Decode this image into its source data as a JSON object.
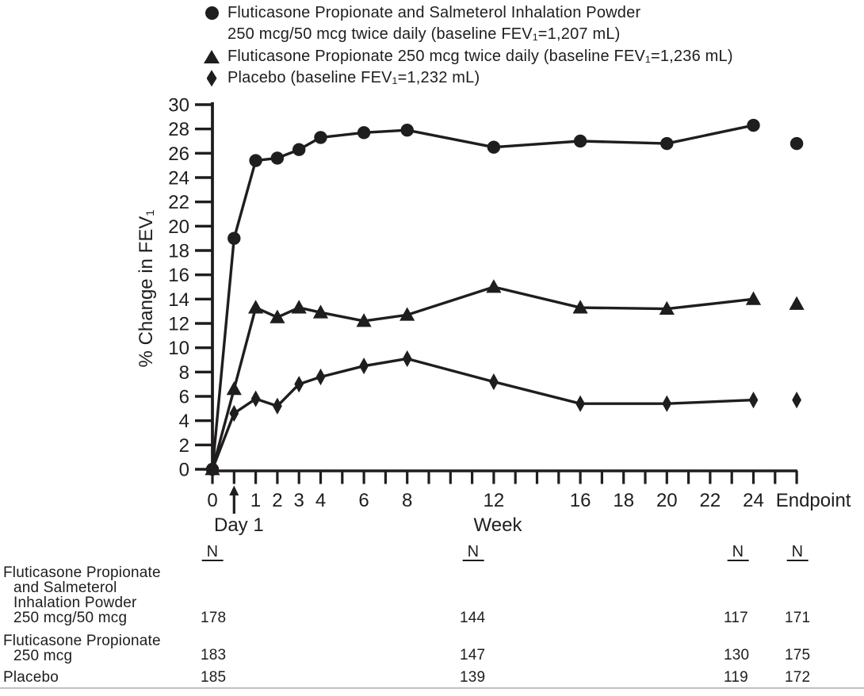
{
  "colors": {
    "ink": "#1f1d1d",
    "background": "#ffffff",
    "divider": "#c2c0c0"
  },
  "legend": {
    "items": [
      {
        "marker": "circle",
        "lines": [
          "Fluticasone Propionate and Salmeterol Inhalation Powder",
          "250 mcg/50 mcg twice daily (baseline FEV₁=1,207 mL)"
        ]
      },
      {
        "marker": "triangle",
        "lines": [
          "Fluticasone Propionate 250 mcg twice daily (baseline FEV₁=1,236 mL)"
        ]
      },
      {
        "marker": "diamond",
        "lines": [
          "Placebo (baseline FEV₁=1,232 mL)"
        ]
      }
    ]
  },
  "chart_data": {
    "type": "line",
    "title": "",
    "xlabel": "Week",
    "ylabel": "% Change in FEV₁",
    "ylim": [
      0,
      30
    ],
    "ytick_step": 2,
    "grid": false,
    "legend_position": "top-left",
    "x": [
      "0",
      "Day 1",
      "1",
      "2",
      "3",
      "4",
      "6",
      "8",
      "12",
      "16",
      "20",
      "24",
      "Endpoint"
    ],
    "series": [
      {
        "name": "Fluticasone Propionate and Salmeterol Inhalation Powder 250 mcg/50 mcg",
        "marker": "circle",
        "values": [
          0,
          19.0,
          25.4,
          25.6,
          26.3,
          27.3,
          27.7,
          27.9,
          26.5,
          27.0,
          26.8,
          28.3,
          26.8
        ]
      },
      {
        "name": "Fluticasone Propionate 250 mcg",
        "marker": "triangle",
        "values": [
          0,
          6.6,
          13.3,
          12.5,
          13.3,
          12.9,
          12.2,
          12.7,
          15.0,
          13.3,
          13.2,
          14.0,
          13.6
        ]
      },
      {
        "name": "Placebo",
        "marker": "diamond",
        "values": [
          0,
          4.6,
          5.8,
          5.2,
          7.0,
          7.6,
          8.5,
          9.1,
          7.2,
          5.4,
          5.4,
          5.7,
          5.7
        ]
      }
    ],
    "x_axis": {
      "day1_label": "Day 1",
      "endpoint_label": "Endpoint",
      "labeled_ticks": [
        "0",
        "1",
        "2",
        "3",
        "4",
        "6",
        "8",
        "12",
        "16",
        "18",
        "20",
        "22",
        "24",
        "Endpoint"
      ],
      "weeks_with_minor_ticks": 25
    },
    "endpoint_detached": true
  },
  "n_table": {
    "header": "N",
    "rows": [
      {
        "label_lines": [
          "Fluticasone Propionate",
          "and Salmeterol",
          "Inhalation Powder",
          "250 mcg/50 mcg"
        ],
        "values": [
          "178",
          "144",
          "117",
          "171"
        ]
      },
      {
        "label_lines": [
          "Fluticasone Propionate",
          "250 mcg"
        ],
        "values": [
          "183",
          "147",
          "130",
          "175"
        ]
      },
      {
        "label_lines": [
          "Placebo"
        ],
        "values": [
          "185",
          "139",
          "119",
          "172"
        ]
      }
    ]
  }
}
